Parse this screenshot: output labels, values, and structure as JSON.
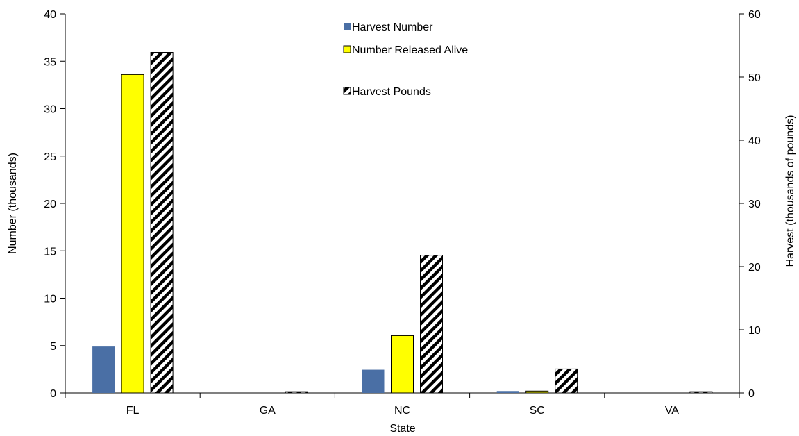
{
  "chart_data": {
    "type": "bar",
    "categories": [
      "FL",
      "GA",
      "NC",
      "SC",
      "VA"
    ],
    "xlabel": "State",
    "ylabel": "Number (thousands)",
    "y2label": "Harvest (thousands of pounds)",
    "ylim": [
      0,
      40
    ],
    "y2lim": [
      0,
      60
    ],
    "yticks": [
      "0",
      "5",
      "10",
      "15",
      "20",
      "25",
      "30",
      "35",
      "40"
    ],
    "y2ticks": [
      "0",
      "10",
      "20",
      "30",
      "40",
      "50",
      "60"
    ],
    "series": [
      {
        "name": "Harvest Number",
        "axis": "left",
        "color": "#4a6fa5",
        "pattern": "solid",
        "values": [
          4.9,
          0.0,
          2.45,
          0.2,
          0.0
        ]
      },
      {
        "name": "Number Released Alive",
        "axis": "left",
        "color": "#ffff00",
        "pattern": "solid",
        "values": [
          33.6,
          0.0,
          6.05,
          0.2,
          0.0
        ]
      },
      {
        "name": "Harvest Pounds",
        "axis": "right",
        "color": "#000000",
        "pattern": "diagonal-stripes",
        "values": [
          53.9,
          0.2,
          21.8,
          3.8,
          0.2
        ]
      }
    ],
    "legend": "top-center",
    "grid": false
  }
}
